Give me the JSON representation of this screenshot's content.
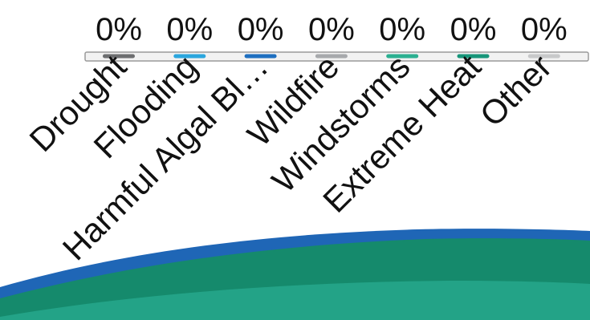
{
  "chart_data": {
    "type": "bar",
    "categories": [
      "Drought",
      "Flooding",
      "Harmful Algal Bl…",
      "Wildfire",
      "Windstorms",
      "Extreme Heat",
      "Other"
    ],
    "values": [
      0,
      0,
      0,
      0,
      0,
      0,
      0
    ],
    "value_labels": [
      "0%",
      "0%",
      "0%",
      "0%",
      "0%",
      "0%",
      "0%"
    ],
    "unit": "%",
    "ylim": [
      0,
      100
    ],
    "bar_colors": [
      "#6d6e70",
      "#2ba6de",
      "#1e6fc0",
      "#a7a9ac",
      "#2bb091",
      "#17967a",
      "#c8c9ca"
    ],
    "grid": false,
    "legend": "none"
  },
  "colors": {
    "background": "#ffffff",
    "text": "#111111",
    "baseline_track": "#f2f2f2",
    "baseline_stroke": "#9a9a9a",
    "wave_blue": "#1f66b6",
    "wave_green_dark": "#158a6c",
    "wave_green_light": "#23a387"
  },
  "decoration": {
    "wave_icon": "teal-wave-banner"
  }
}
